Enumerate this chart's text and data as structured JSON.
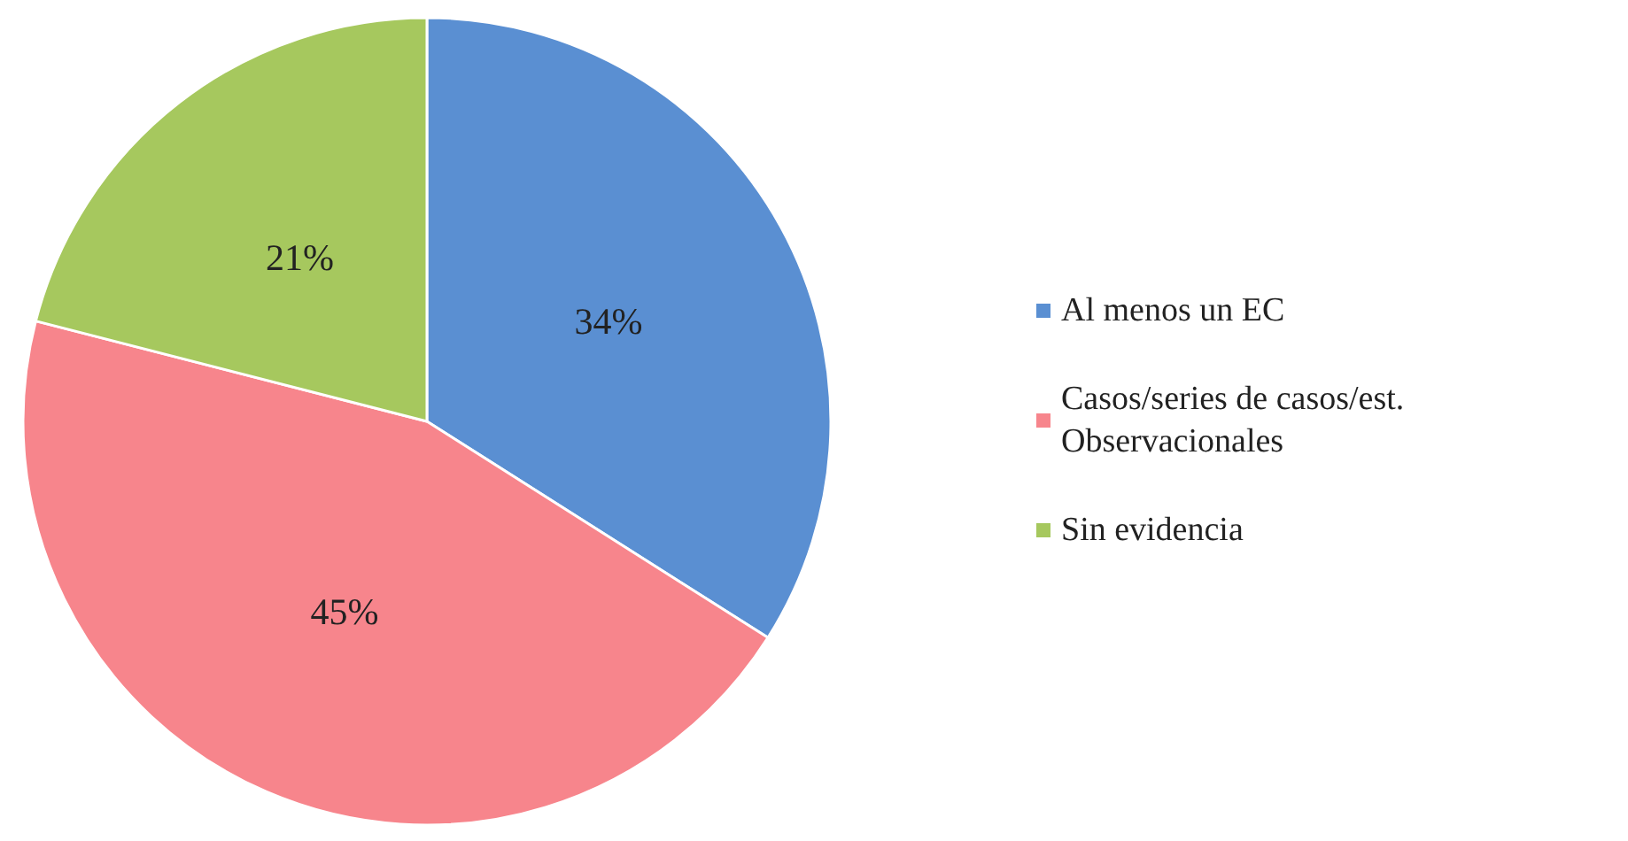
{
  "chart_data": {
    "type": "pie",
    "categories": [
      "Al menos un EC",
      "Casos/series de casos/est. Observacionales",
      "Sin evidencia"
    ],
    "values": [
      34,
      45,
      21
    ],
    "value_labels": [
      "34%",
      "45%",
      "21%"
    ],
    "colors": [
      "#5a8fd2",
      "#f7858c",
      "#a6c85e"
    ],
    "legend": "right"
  }
}
